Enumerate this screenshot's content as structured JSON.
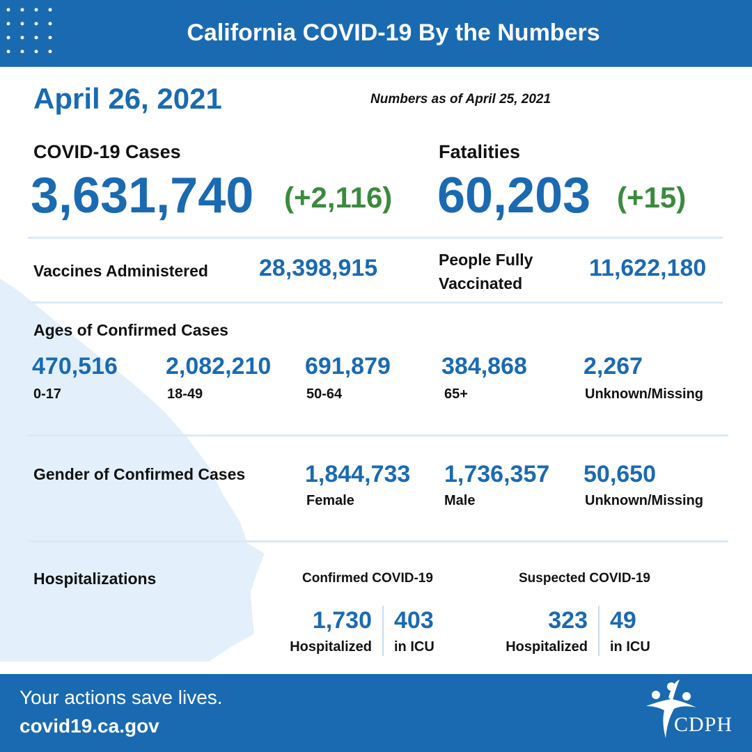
{
  "header": {
    "title": "California COVID-19 By the Numbers"
  },
  "date": "April 26, 2021",
  "as_of": "Numbers as of April 25, 2021",
  "cases": {
    "label": "COVID-19 Cases",
    "value": "3,631,740",
    "change": "(+2,116)"
  },
  "fatalities": {
    "label": "Fatalities",
    "value": "60,203",
    "change": "(+15)"
  },
  "vaccines": {
    "administered_label": "Vaccines Administered",
    "administered_value": "28,398,915",
    "fully_label_line1": "People Fully",
    "fully_label_line2": "Vaccinated",
    "fully_value": "11,622,180"
  },
  "ages": {
    "title": "Ages of Confirmed Cases",
    "items": [
      {
        "value": "470,516",
        "label": "0-17"
      },
      {
        "value": "2,082,210",
        "label": "18-49"
      },
      {
        "value": "691,879",
        "label": "50-64"
      },
      {
        "value": "384,868",
        "label": "65+"
      },
      {
        "value": "2,267",
        "label": "Unknown/Missing"
      }
    ]
  },
  "gender": {
    "title": "Gender of Confirmed Cases",
    "items": [
      {
        "value": "1,844,733",
        "label": "Female"
      },
      {
        "value": "1,736,357",
        "label": "Male"
      },
      {
        "value": "50,650",
        "label": "Unknown/Missing"
      }
    ]
  },
  "hospitalizations": {
    "title": "Hospitalizations",
    "confirmed": {
      "title": "Confirmed COVID-19",
      "hosp_value": "1,730",
      "hosp_label": "Hospitalized",
      "icu_value": "403",
      "icu_label": "in ICU"
    },
    "suspected": {
      "title": "Suspected COVID-19",
      "hosp_value": "323",
      "hosp_label": "Hospitalized",
      "icu_value": "49",
      "icu_label": "in ICU"
    }
  },
  "footer": {
    "tagline": "Your actions save lives.",
    "website": "covid19.ca.gov",
    "logo_text": "CDPH"
  },
  "colors": {
    "brand_blue": "#1a6ab2",
    "change_green": "#3a8a3e",
    "map_light_blue": "#e3f0fb"
  }
}
